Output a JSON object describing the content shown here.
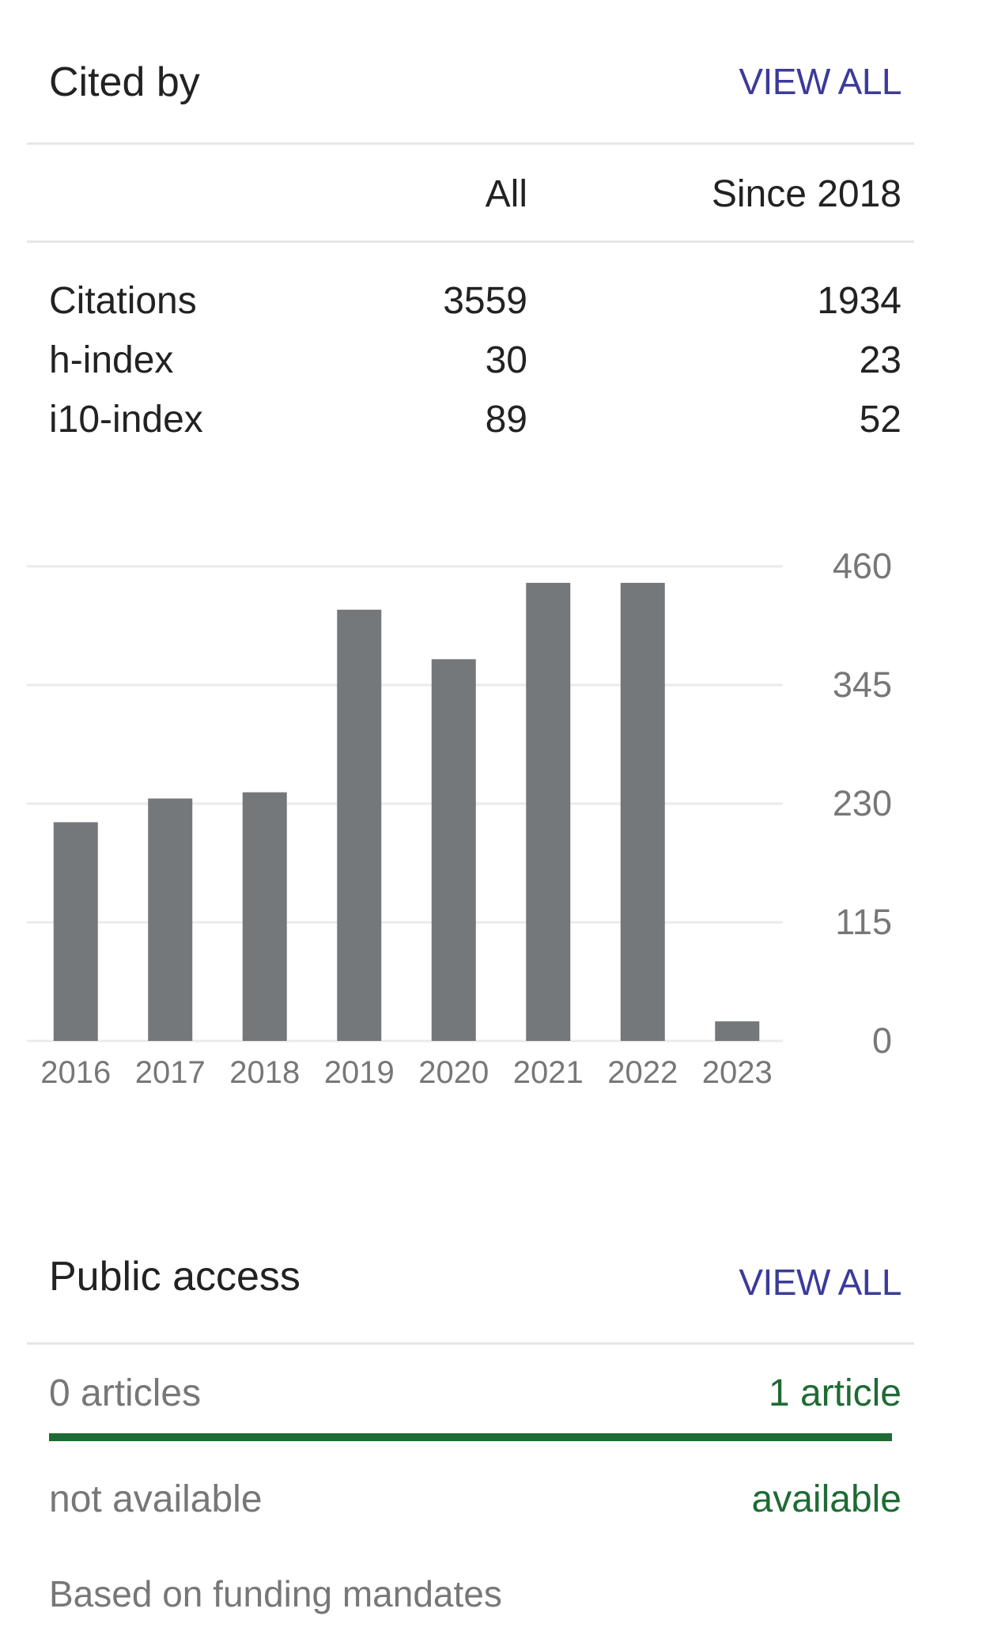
{
  "cited_by": {
    "title": "Cited by",
    "view_all": "VIEW ALL",
    "columns": [
      "All",
      "Since 2018"
    ],
    "rows": [
      {
        "label": "Citations",
        "all": "3559",
        "since": "1934"
      },
      {
        "label": "h-index",
        "all": "30",
        "since": "23"
      },
      {
        "label": "i10-index",
        "all": "89",
        "since": "52"
      }
    ]
  },
  "chart_data": {
    "type": "bar",
    "categories": [
      "2016",
      "2017",
      "2018",
      "2019",
      "2020",
      "2021",
      "2022",
      "2023"
    ],
    "values": [
      212,
      235,
      241,
      418,
      370,
      444,
      444,
      19
    ],
    "y_ticks": [
      "0",
      "115",
      "230",
      "345",
      "460"
    ],
    "ylim": [
      0,
      460
    ],
    "grid": true,
    "bar_color": "#74787b"
  },
  "public_access": {
    "title": "Public access",
    "view_all": "VIEW ALL",
    "not_available_count": "0 articles",
    "available_count": "1 article",
    "not_available_label": "not available",
    "available_label": "available",
    "available_fraction": 1.0,
    "footnote": "Based on funding mandates"
  },
  "colors": {
    "link": "#3b3b9a",
    "available": "#1e6b34",
    "muted": "#777777"
  }
}
